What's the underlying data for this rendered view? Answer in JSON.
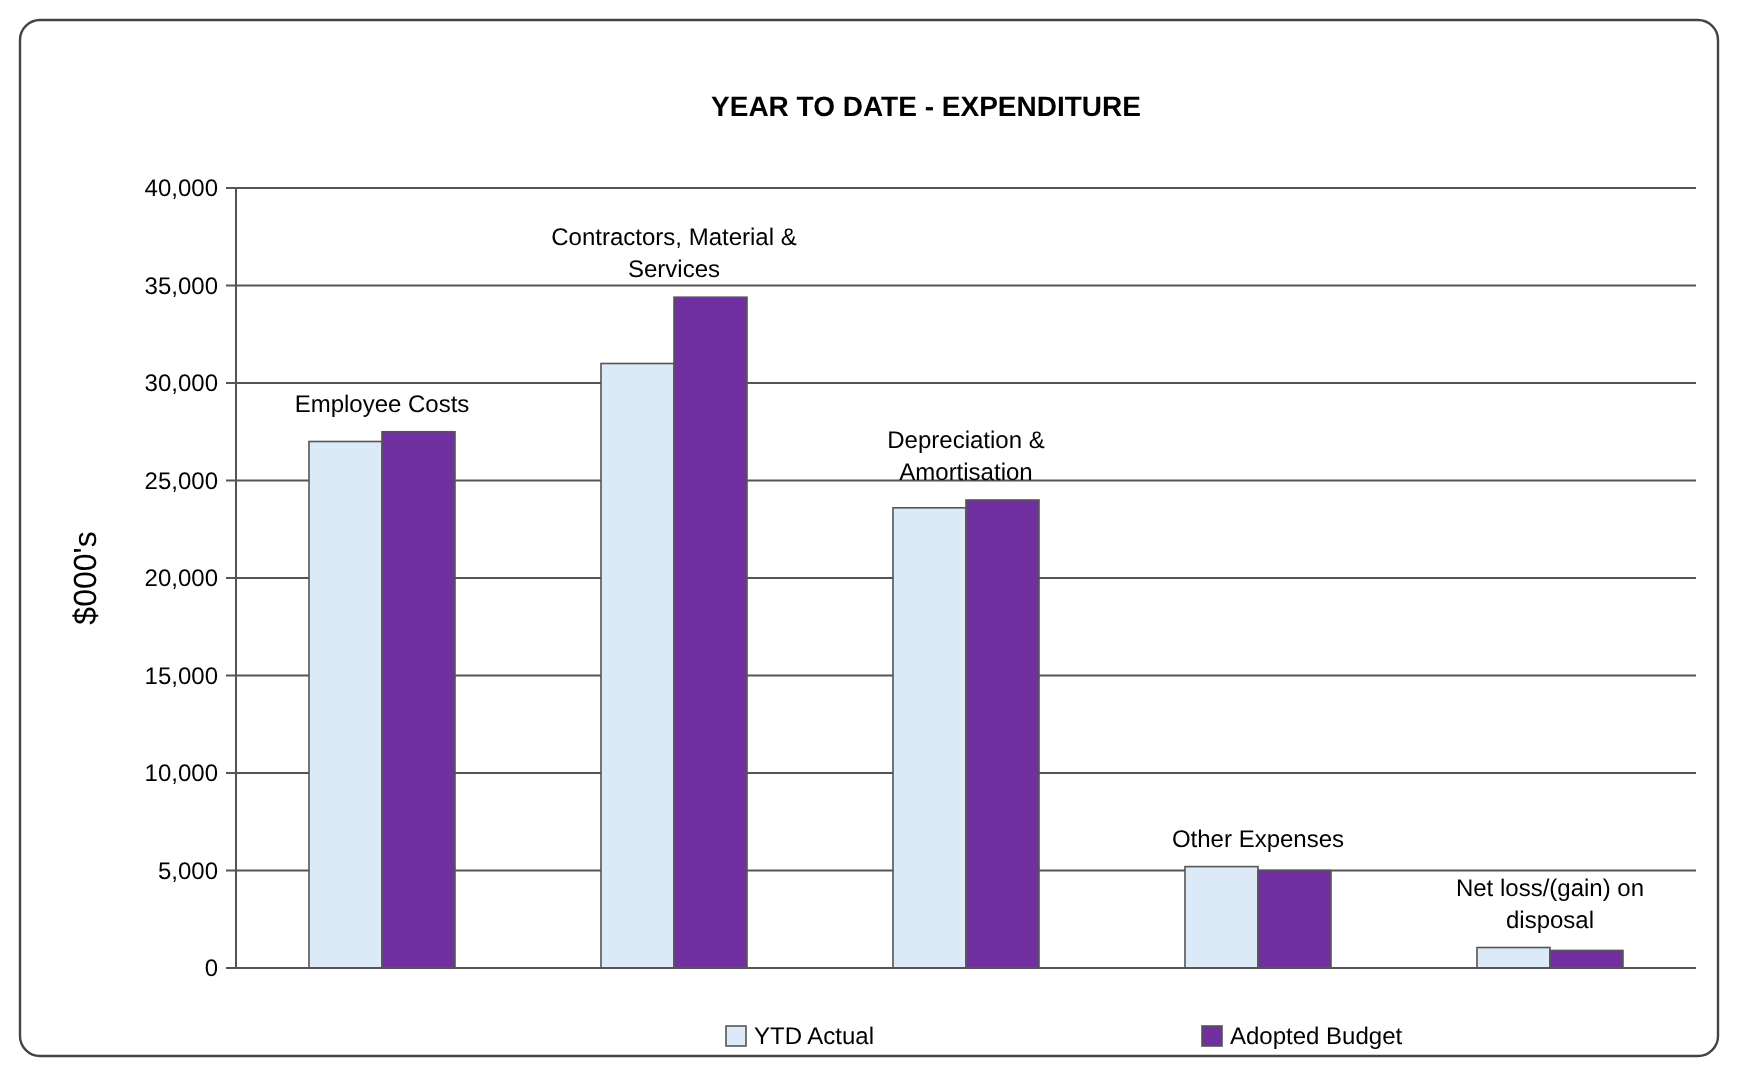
{
  "chart_data": {
    "type": "bar",
    "title": "YEAR TO DATE - EXPENDITURE",
    "ylabel": "$000's",
    "categories": [
      "Employee Costs",
      "Contractors, Material & Services",
      "Depreciation & Amortisation",
      "Other Expenses",
      "Net loss/(gain) on disposal"
    ],
    "series": [
      {
        "name": "YTD Actual",
        "color": "#dce9f7",
        "values": [
          27000,
          31000,
          23600,
          5200,
          1050
        ]
      },
      {
        "name": "Adopted Budget",
        "color": "#7030a0",
        "values": [
          27500,
          34400,
          24000,
          5000,
          900
        ]
      }
    ],
    "ylim": [
      0,
      40000
    ],
    "yticks": [
      {
        "value": 0,
        "label": "0"
      },
      {
        "value": 5000,
        "label": "5,000"
      },
      {
        "value": 10000,
        "label": "10,000"
      },
      {
        "value": 15000,
        "label": "15,000"
      },
      {
        "value": 20000,
        "label": "20,000"
      },
      {
        "value": 25000,
        "label": "25,000"
      },
      {
        "value": 30000,
        "label": "30,000"
      },
      {
        "value": 35000,
        "label": "35,000"
      },
      {
        "value": 40000,
        "label": "40,000"
      }
    ],
    "grid": "y",
    "legend": "bottom"
  }
}
